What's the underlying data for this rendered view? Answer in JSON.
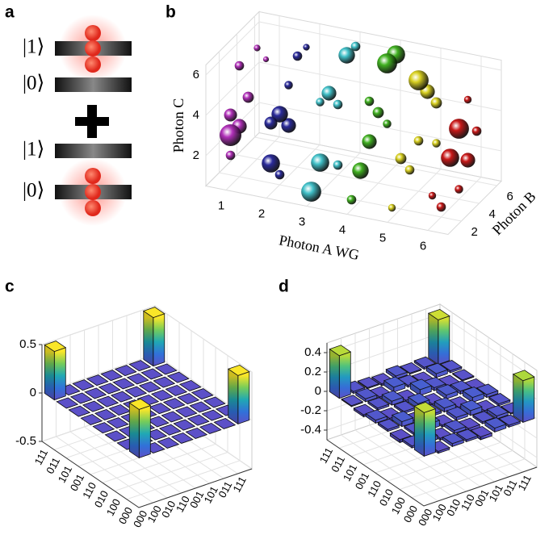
{
  "panel_labels": [
    "a",
    "b",
    "c",
    "d"
  ],
  "diagram": {
    "kets": [
      "|1⟩",
      "|0⟩",
      "|1⟩",
      "|0⟩"
    ]
  },
  "chart_data": [
    {
      "type": "scatter3d",
      "xlabel": "Photon A WG",
      "ylabel": "Photon B",
      "zlabel": "Photon C",
      "xlim": [
        0.5,
        6.5
      ],
      "xticks": [
        1,
        2,
        3,
        4,
        5,
        6
      ],
      "ylim": [
        0.5,
        6.5
      ],
      "yticks": [
        2,
        4,
        6
      ],
      "zlim": [
        0.5,
        6.5
      ],
      "zticks": [
        2,
        4,
        6
      ],
      "grid": true,
      "series": [
        {
          "color": "#b02fb8",
          "x": [
            1,
            1,
            1,
            1,
            1,
            1,
            1,
            1
          ],
          "y": [
            1,
            2,
            1,
            3,
            2,
            4,
            1,
            5
          ],
          "z": [
            3,
            3,
            4,
            4,
            6,
            6,
            2,
            5
          ],
          "sizes": [
            1.0,
            0.6,
            0.5,
            0.4,
            0.3,
            0.15,
            0.3,
            0.1
          ]
        },
        {
          "color": "#2a2a9a",
          "x": [
            2,
            2,
            2,
            2,
            2,
            2,
            2,
            2
          ],
          "y": [
            1,
            2,
            3,
            1,
            4,
            3,
            5,
            2
          ],
          "z": [
            2,
            4,
            3,
            4,
            6,
            5,
            6,
            1
          ],
          "sizes": [
            0.8,
            0.7,
            0.6,
            0.5,
            0.3,
            0.25,
            0.15,
            0.3
          ]
        },
        {
          "color": "#40c0c8",
          "x": [
            3,
            3,
            3,
            3,
            3,
            3,
            3,
            3
          ],
          "y": [
            1,
            2,
            3,
            5,
            4,
            2,
            6,
            4
          ],
          "z": [
            1,
            2,
            5,
            6,
            4,
            5,
            6,
            1
          ],
          "sizes": [
            0.9,
            0.8,
            0.6,
            0.7,
            0.3,
            0.25,
            0.3,
            0.3
          ]
        },
        {
          "color": "#40b020",
          "x": [
            4,
            4,
            4,
            4,
            4,
            4,
            4,
            4
          ],
          "y": [
            2,
            3,
            5,
            6,
            4,
            3,
            1,
            5
          ],
          "z": [
            2,
            3,
            6,
            6,
            4,
            5,
            1,
            3
          ],
          "sizes": [
            0.7,
            0.6,
            0.9,
            0.8,
            0.4,
            0.3,
            0.3,
            0.25
          ]
        },
        {
          "color": "#d8d020",
          "x": [
            5,
            5,
            5,
            5,
            5,
            5,
            5,
            5
          ],
          "y": [
            2,
            4,
            5,
            3,
            6,
            1,
            4,
            6
          ],
          "z": [
            3,
            6,
            5,
            2,
            4,
            1,
            3,
            2
          ],
          "sizes": [
            0.4,
            0.9,
            0.6,
            0.3,
            0.4,
            0.2,
            0.3,
            0.25
          ]
        },
        {
          "color": "#c81818",
          "x": [
            6,
            6,
            6,
            6,
            6,
            6,
            6,
            6
          ],
          "y": [
            3,
            4,
            5,
            2,
            6,
            1,
            4,
            5
          ],
          "z": [
            3,
            4,
            2,
            1,
            3,
            2,
            1,
            5
          ],
          "sizes": [
            0.8,
            0.9,
            0.6,
            0.3,
            0.3,
            0.2,
            0.25,
            0.2
          ]
        }
      ]
    },
    {
      "type": "bar3d",
      "row_labels": [
        "111",
        "011",
        "101",
        "001",
        "110",
        "010",
        "100",
        "000"
      ],
      "col_labels": [
        "000",
        "100",
        "010",
        "110",
        "001",
        "101",
        "011",
        "111"
      ],
      "zlim": [
        -0.5,
        0.5
      ],
      "zticks": [
        -0.5,
        0,
        0.5
      ],
      "values": [
        [
          0.5,
          0,
          0,
          0,
          0,
          0,
          0,
          0.5
        ],
        [
          0,
          0,
          0,
          0,
          0,
          0,
          0,
          0
        ],
        [
          0,
          0,
          0,
          0,
          0,
          0,
          0,
          0
        ],
        [
          0,
          0,
          0,
          0,
          0,
          0,
          0,
          0
        ],
        [
          0,
          0,
          0,
          0,
          0,
          0,
          0,
          0
        ],
        [
          0,
          0,
          0,
          0,
          0,
          0,
          0,
          0
        ],
        [
          0,
          0,
          0,
          0,
          0,
          0,
          0,
          0
        ],
        [
          0.5,
          0,
          0,
          0,
          0,
          0,
          0,
          0.5
        ]
      ]
    },
    {
      "type": "bar3d",
      "row_labels": [
        "111",
        "011",
        "101",
        "001",
        "110",
        "010",
        "100",
        "000"
      ],
      "col_labels": [
        "000",
        "100",
        "010",
        "110",
        "001",
        "101",
        "011",
        "111"
      ],
      "zlim": [
        -0.5,
        0.5
      ],
      "zticks": [
        -0.4,
        -0.2,
        0,
        0.2,
        0.4
      ],
      "values": [
        [
          0.44,
          0.02,
          0.01,
          -0.02,
          0.03,
          0.01,
          0.02,
          0.46
        ],
        [
          0.01,
          0.03,
          -0.02,
          0.05,
          0.02,
          -0.03,
          0.04,
          0.02
        ],
        [
          -0.02,
          0.02,
          0.04,
          -0.03,
          0.06,
          0.03,
          -0.02,
          0.01
        ],
        [
          0.03,
          -0.04,
          0.02,
          0.05,
          -0.02,
          0.04,
          0.03,
          -0.02
        ],
        [
          0.02,
          0.05,
          -0.03,
          0.02,
          0.04,
          -0.02,
          0.05,
          0.03
        ],
        [
          -0.03,
          0.02,
          0.06,
          -0.02,
          0.03,
          0.05,
          -0.03,
          0.02
        ],
        [
          0.02,
          0.04,
          -0.02,
          0.03,
          -0.04,
          0.02,
          0.03,
          0.01
        ],
        [
          0.45,
          -0.02,
          0.03,
          0.02,
          -0.03,
          0.04,
          0.02,
          0.43
        ]
      ]
    }
  ]
}
